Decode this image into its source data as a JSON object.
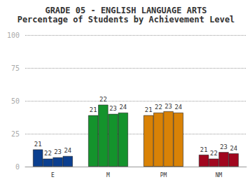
{
  "chart_data": {
    "type": "bar",
    "title": "GRADE 05 - ENGLISH LANGUAGE ARTS",
    "subtitle": "Percentage of Students by Achievement Level",
    "categories": [
      "E",
      "M",
      "PM",
      "NM"
    ],
    "series": [
      {
        "name": "21",
        "colors": [
          "#0b3f8f",
          "#14932c",
          "#d98206",
          "#a1071f"
        ],
        "values": [
          13,
          39,
          39,
          9
        ]
      },
      {
        "name": "22",
        "colors": [
          "#0b3f8f",
          "#14932c",
          "#d98206",
          "#a1071f"
        ],
        "values": [
          6,
          47,
          41,
          6
        ]
      },
      {
        "name": "23",
        "colors": [
          "#0b3f8f",
          "#14932c",
          "#d98206",
          "#a1071f"
        ],
        "values": [
          7,
          40,
          42,
          11
        ]
      },
      {
        "name": "24",
        "colors": [
          "#0b3f8f",
          "#14932c",
          "#d98206",
          "#a1071f"
        ],
        "values": [
          8,
          41,
          41,
          10
        ]
      }
    ],
    "ylim": [
      0,
      100
    ],
    "yticks": [
      0,
      25,
      50,
      75,
      100
    ],
    "grid": true
  }
}
